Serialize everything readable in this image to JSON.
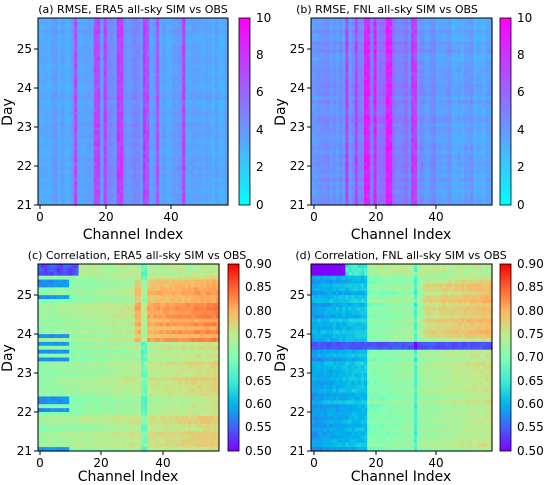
{
  "chart_data": [
    {
      "type": "heatmap",
      "title": "(a) RMSE, ERA5 all-sky SIM vs OBS",
      "xlabel": "Channel Index",
      "ylabel": "Day",
      "x_ticks": [
        "0",
        "20",
        "40"
      ],
      "y_ticks": [
        "21",
        "22",
        "23",
        "24",
        "25"
      ],
      "xlim": [
        0,
        58
      ],
      "ylim": [
        21,
        25.8
      ],
      "colormap": "cool",
      "colorbar_range": [
        0,
        10
      ],
      "colorbar_ticks": [
        "0",
        "2",
        "4",
        "6",
        "8",
        "10"
      ],
      "high_value_channels": [
        11,
        17,
        18,
        20,
        24,
        25,
        32,
        33,
        36,
        44
      ],
      "typical_value_range": [
        2,
        5
      ]
    },
    {
      "type": "heatmap",
      "title": "(b) RMSE, FNL all-sky SIM vs OBS",
      "xlabel": "Channel Index",
      "ylabel": "Day",
      "x_ticks": [
        "0",
        "20",
        "40"
      ],
      "y_ticks": [
        "21",
        "22",
        "23",
        "24",
        "25"
      ],
      "xlim": [
        0,
        58
      ],
      "ylim": [
        21,
        25.8
      ],
      "colormap": "cool",
      "colorbar_range": [
        0,
        10
      ],
      "colorbar_ticks": [
        "0",
        "2",
        "4",
        "6",
        "8",
        "10"
      ],
      "high_value_channels": [
        11,
        14,
        17,
        18,
        20,
        24,
        25,
        32,
        33
      ],
      "typical_value_range": [
        2,
        6
      ]
    },
    {
      "type": "heatmap",
      "title": "(c) Correlation, ERA5 all-sky SIM vs OBS",
      "xlabel": "Channel Index",
      "ylabel": "Day",
      "x_ticks": [
        "0",
        "20",
        "40"
      ],
      "y_ticks": [
        "21",
        "22",
        "23",
        "24",
        "25"
      ],
      "xlim": [
        0,
        58
      ],
      "ylim": [
        21,
        25.8
      ],
      "colormap": "rainbow",
      "colorbar_range": [
        0.5,
        0.9
      ],
      "colorbar_ticks": [
        "0.50",
        "0.55",
        "0.60",
        "0.65",
        "0.70",
        "0.75",
        "0.80",
        "0.85",
        "0.90"
      ],
      "typical_value_range": [
        0.62,
        0.82
      ],
      "low_value_region": "top rows (day ~25.8) for channels 0–10"
    },
    {
      "type": "heatmap",
      "title": "(d) Correlation, FNL all-sky SIM vs OBS",
      "xlabel": "Channel Index",
      "ylabel": "Day",
      "x_ticks": [
        "0",
        "20",
        "40"
      ],
      "y_ticks": [
        "21",
        "22",
        "23",
        "24",
        "25"
      ],
      "xlim": [
        0,
        58
      ],
      "ylim": [
        21,
        25.8
      ],
      "colormap": "rainbow",
      "colorbar_range": [
        0.5,
        0.9
      ],
      "colorbar_ticks": [
        "0.50",
        "0.55",
        "0.60",
        "0.65",
        "0.70",
        "0.75",
        "0.80",
        "0.85",
        "0.90"
      ],
      "typical_value_range": [
        0.55,
        0.75
      ],
      "low_value_region": "channels 0–18 and a horizontal band near day 23.6"
    }
  ]
}
